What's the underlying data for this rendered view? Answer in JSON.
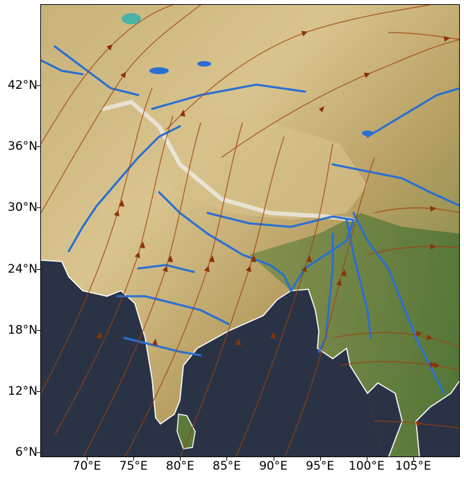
{
  "map": {
    "extent": {
      "lon_min": 65,
      "lon_max": 110,
      "lat_min": 5.5,
      "lat_max": 50
    },
    "lat_ticks": [
      {
        "value": 42,
        "label": "42°N"
      },
      {
        "value": 36,
        "label": "36°N"
      },
      {
        "value": 30,
        "label": "30°N"
      },
      {
        "value": 24,
        "label": "24°N"
      },
      {
        "value": 18,
        "label": "18°N"
      },
      {
        "value": 12,
        "label": "12°N"
      },
      {
        "value": 6,
        "label": "6°N"
      }
    ],
    "lon_ticks": [
      {
        "value": 70,
        "label": "70°E"
      },
      {
        "value": 75,
        "label": "75°E"
      },
      {
        "value": 80,
        "label": "80°E"
      },
      {
        "value": 85,
        "label": "85°E"
      },
      {
        "value": 90,
        "label": "90°E"
      },
      {
        "value": 95,
        "label": "95°E"
      },
      {
        "value": 100,
        "label": "100°E"
      },
      {
        "value": 105,
        "label": "105°E"
      }
    ],
    "colors": {
      "land_desert": "#d8bf86",
      "land_green": "#6f8a45",
      "land_mid": "#b49a5e",
      "ocean": "#2a3346",
      "river": "#2a6fd1",
      "coastline": "#ffffff",
      "streamline": "#a0400c",
      "snow": "#f2f2f2"
    },
    "features": {
      "coastline": "white-coastline",
      "rivers": "blue-rivers",
      "streamlines": "wind-streamlines-with-arrows",
      "basemap": "satellite-relief"
    }
  }
}
